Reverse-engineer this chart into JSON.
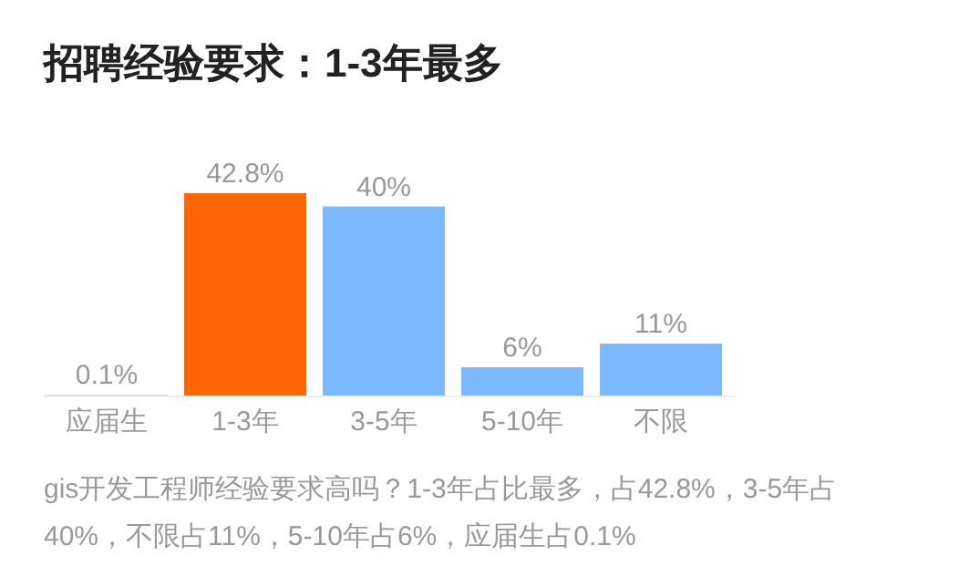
{
  "chart_data": {
    "type": "bar",
    "title": "招聘经验要求：1-3年最多",
    "categories": [
      "应届生",
      "1-3年",
      "3-5年",
      "5-10年",
      "不限"
    ],
    "values": [
      0.1,
      42.8,
      40,
      6,
      11
    ],
    "colors": [
      "#7ab8ff",
      "#ff6600",
      "#7ab8ff",
      "#7ab8ff",
      "#7ab8ff"
    ],
    "value_labels": [
      "0.1%",
      "42.8%",
      "40%",
      "6%",
      "11%"
    ],
    "annotations": [
      "gis开发工程师经验要求高吗？1-3年占比最多，占42.8%，3-5年占40%，不限占11%，5-10年占6%，应届生占0.1%"
    ]
  }
}
